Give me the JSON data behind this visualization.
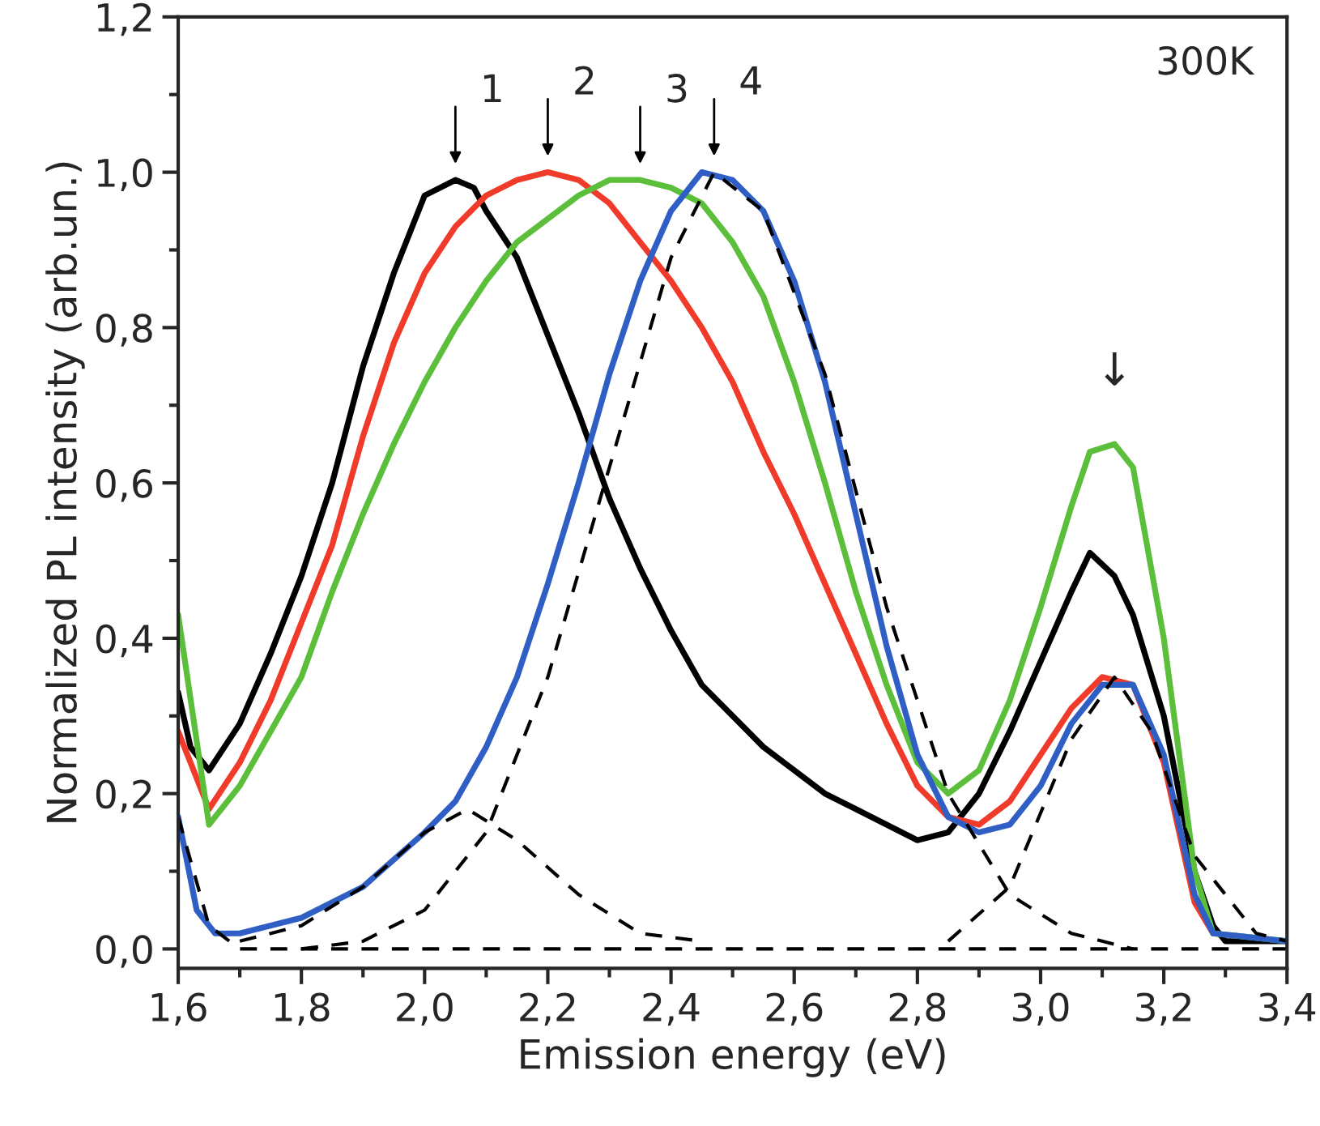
{
  "chart_data": {
    "type": "line",
    "xlabel": "Emission energy (eV)",
    "ylabel": "Normalized PL intensity (arb.un.)",
    "xlim": [
      1.6,
      3.4
    ],
    "ylim": [
      -0.025,
      1.2
    ],
    "xticks": [
      {
        "value": 1.6,
        "label": "1,6"
      },
      {
        "value": 1.8,
        "label": "1,8"
      },
      {
        "value": 2.0,
        "label": "2,0"
      },
      {
        "value": 2.2,
        "label": "2,2"
      },
      {
        "value": 2.4,
        "label": "2,4"
      },
      {
        "value": 2.6,
        "label": "2,6"
      },
      {
        "value": 2.8,
        "label": "2,8"
      },
      {
        "value": 3.0,
        "label": "3,0"
      },
      {
        "value": 3.2,
        "label": "3,2"
      },
      {
        "value": 3.4,
        "label": "3,4"
      }
    ],
    "yticks": [
      {
        "value": 0.0,
        "label": "0,0"
      },
      {
        "value": 0.2,
        "label": "0,2"
      },
      {
        "value": 0.4,
        "label": "0,4"
      },
      {
        "value": 0.6,
        "label": "0,6"
      },
      {
        "value": 0.8,
        "label": "0,8"
      },
      {
        "value": 1.0,
        "label": "1,0"
      },
      {
        "value": 1.2,
        "label": "1,2"
      }
    ],
    "grid": false,
    "legend": false,
    "line_style": "solid",
    "series": [
      {
        "color": "#000000",
        "x": [
          1.6,
          1.62,
          1.65,
          1.7,
          1.75,
          1.8,
          1.85,
          1.9,
          1.95,
          2.0,
          2.05,
          2.08,
          2.1,
          2.15,
          2.2,
          2.25,
          2.3,
          2.35,
          2.4,
          2.45,
          2.5,
          2.55,
          2.6,
          2.65,
          2.7,
          2.75,
          2.8,
          2.85,
          2.9,
          2.95,
          3.0,
          3.05,
          3.08,
          3.12,
          3.15,
          3.2,
          3.25,
          3.28,
          3.3,
          3.4
        ],
        "values": [
          0.33,
          0.26,
          0.23,
          0.29,
          0.38,
          0.48,
          0.6,
          0.75,
          0.87,
          0.97,
          0.99,
          0.98,
          0.95,
          0.89,
          0.79,
          0.69,
          0.58,
          0.49,
          0.41,
          0.34,
          0.3,
          0.26,
          0.23,
          0.2,
          0.18,
          0.16,
          0.14,
          0.15,
          0.2,
          0.28,
          0.37,
          0.46,
          0.51,
          0.48,
          0.43,
          0.3,
          0.1,
          0.03,
          0.01,
          0.01
        ]
      },
      {
        "color": "#f03a2a",
        "x": [
          1.6,
          1.65,
          1.7,
          1.75,
          1.8,
          1.85,
          1.9,
          1.95,
          2.0,
          2.05,
          2.1,
          2.15,
          2.2,
          2.25,
          2.3,
          2.35,
          2.4,
          2.45,
          2.5,
          2.55,
          2.6,
          2.65,
          2.7,
          2.75,
          2.8,
          2.85,
          2.9,
          2.95,
          3.0,
          3.05,
          3.1,
          3.15,
          3.2,
          3.25,
          3.28
        ],
        "values": [
          0.28,
          0.18,
          0.24,
          0.32,
          0.42,
          0.52,
          0.66,
          0.78,
          0.87,
          0.93,
          0.97,
          0.99,
          1.0,
          0.99,
          0.96,
          0.91,
          0.86,
          0.8,
          0.73,
          0.64,
          0.56,
          0.47,
          0.38,
          0.29,
          0.21,
          0.17,
          0.16,
          0.19,
          0.25,
          0.31,
          0.35,
          0.34,
          0.24,
          0.06,
          0.02
        ]
      },
      {
        "color": "#5cbf3c",
        "x": [
          1.6,
          1.65,
          1.7,
          1.75,
          1.8,
          1.85,
          1.9,
          1.95,
          2.0,
          2.05,
          2.1,
          2.15,
          2.2,
          2.25,
          2.3,
          2.35,
          2.4,
          2.45,
          2.5,
          2.55,
          2.6,
          2.65,
          2.7,
          2.75,
          2.8,
          2.85,
          2.9,
          2.95,
          3.0,
          3.05,
          3.08,
          3.12,
          3.15,
          3.2,
          3.25,
          3.28,
          3.4
        ],
        "values": [
          0.43,
          0.16,
          0.21,
          0.28,
          0.35,
          0.46,
          0.56,
          0.65,
          0.73,
          0.8,
          0.86,
          0.91,
          0.94,
          0.97,
          0.99,
          0.99,
          0.98,
          0.96,
          0.91,
          0.84,
          0.73,
          0.6,
          0.46,
          0.34,
          0.24,
          0.2,
          0.23,
          0.32,
          0.44,
          0.57,
          0.64,
          0.65,
          0.62,
          0.4,
          0.1,
          0.02,
          0.01
        ]
      },
      {
        "color": "#2f5fc4",
        "x": [
          1.6,
          1.63,
          1.66,
          1.7,
          1.8,
          1.9,
          2.0,
          2.05,
          2.1,
          2.15,
          2.2,
          2.25,
          2.3,
          2.35,
          2.4,
          2.45,
          2.5,
          2.55,
          2.6,
          2.65,
          2.7,
          2.75,
          2.8,
          2.85,
          2.9,
          2.95,
          3.0,
          3.05,
          3.1,
          3.15,
          3.2,
          3.25,
          3.28,
          3.4
        ],
        "values": [
          0.17,
          0.05,
          0.02,
          0.02,
          0.04,
          0.08,
          0.15,
          0.19,
          0.26,
          0.35,
          0.47,
          0.6,
          0.74,
          0.86,
          0.95,
          1.0,
          0.99,
          0.95,
          0.86,
          0.73,
          0.56,
          0.39,
          0.25,
          0.17,
          0.15,
          0.16,
          0.21,
          0.29,
          0.34,
          0.34,
          0.25,
          0.07,
          0.02,
          0.01
        ]
      },
      {
        "color": "#000000",
        "line_style": "dashed",
        "x": [
          1.7,
          1.8,
          1.9,
          2.0,
          2.07,
          2.15,
          2.25,
          2.35,
          2.45
        ],
        "values": [
          0.01,
          0.03,
          0.08,
          0.15,
          0.18,
          0.14,
          0.07,
          0.02,
          0.01
        ]
      },
      {
        "color": "#000000",
        "line_style": "dashed",
        "x": [
          1.8,
          1.9,
          2.0,
          2.1,
          2.2,
          2.3,
          2.4,
          2.47,
          2.55,
          2.65,
          2.75,
          2.85,
          2.95,
          3.05,
          3.15
        ],
        "values": [
          0.0,
          0.01,
          0.05,
          0.15,
          0.35,
          0.62,
          0.89,
          1.0,
          0.95,
          0.74,
          0.44,
          0.2,
          0.07,
          0.02,
          0.0
        ]
      },
      {
        "color": "#000000",
        "line_style": "dashed",
        "x": [
          2.85,
          2.95,
          3.05,
          3.12,
          3.18,
          3.25,
          3.35,
          3.4
        ],
        "values": [
          0.01,
          0.08,
          0.27,
          0.35,
          0.28,
          0.12,
          0.02,
          0.01
        ]
      },
      {
        "color": "#000000",
        "line_style": "dashed",
        "x": [
          1.6,
          1.65,
          1.7,
          3.4
        ],
        "values": [
          0.17,
          0.03,
          0.0,
          0.0
        ]
      }
    ],
    "annotations": [
      {
        "text": "1",
        "x": 2.05,
        "y": 0.99
      },
      {
        "text": "2",
        "x": 2.2,
        "y": 1.0
      },
      {
        "text": "3",
        "x": 2.35,
        "y": 0.99
      },
      {
        "text": "4",
        "x": 2.47,
        "y": 1.0
      },
      {
        "text": "↓",
        "x": 3.12,
        "y": 0.65
      },
      "300K"
    ]
  }
}
